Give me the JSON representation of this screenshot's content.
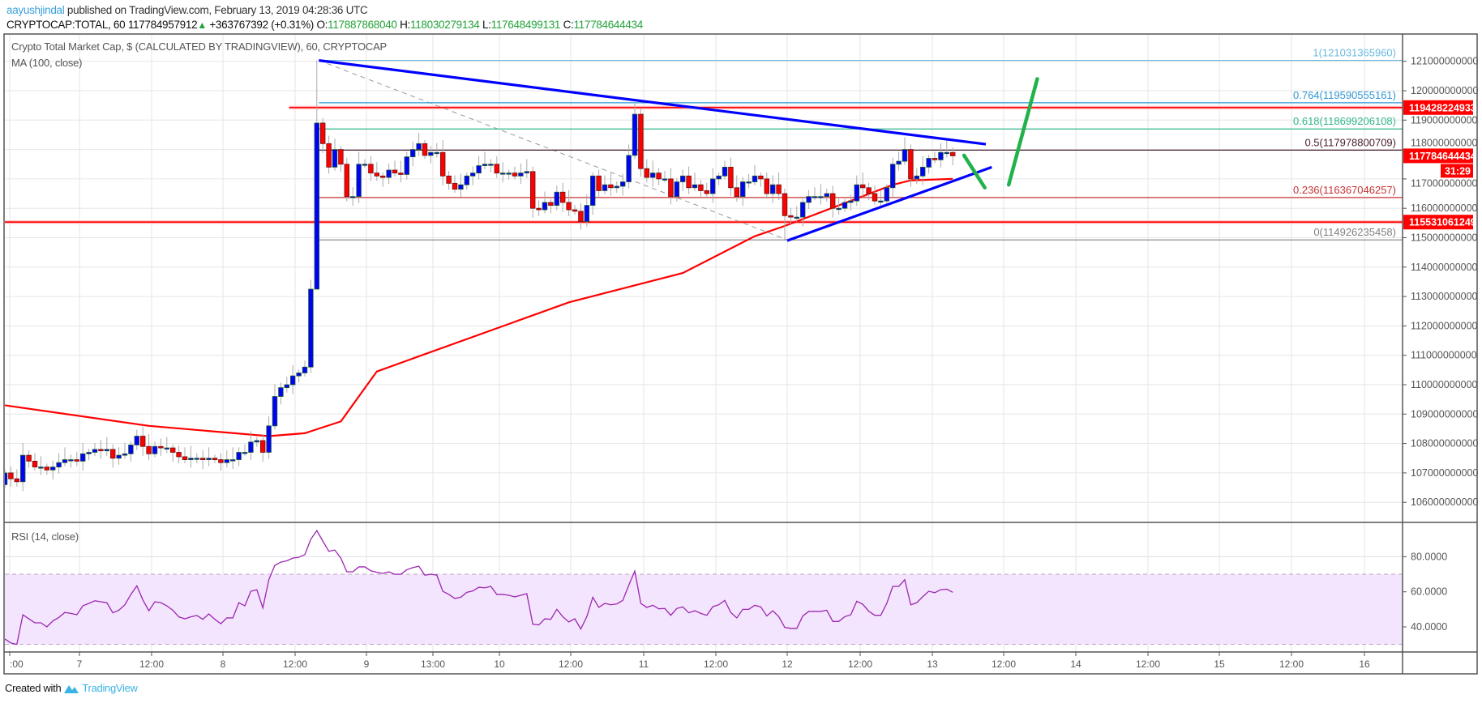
{
  "header": {
    "author": "aayushjindal",
    "published": "published on TradingView.com, February 13, 2019 04:28:36 UTC",
    "symbol": "CRYPTOCAP:TOTAL, 60",
    "last": "117784957912",
    "change_icon": "triangle-up-icon",
    "change": "+363767392 (+0.31%)",
    "o_label": "O:",
    "o": "117887868040",
    "h_label": "H:",
    "h": "118030279134",
    "l_label": "L:",
    "l": "117648499131",
    "c_label": "C:",
    "c": "117784644434"
  },
  "legend": {
    "title": "Crypto Total Market Cap, $ (CALCULATED BY TRADINGVIEW), 60, CRYPTOCAP",
    "ma": "MA (100, close)",
    "rsi": "RSI (14, close)"
  },
  "footer": {
    "created": "Created with",
    "brand": "TradingView",
    "logo_icon": "tradingview-logo-icon"
  },
  "colors": {
    "up_body": "#0000ff",
    "up_border": "#1e5a2a",
    "down_body": "#ff0000",
    "down_border": "#6b1010",
    "wick": "#aaaaaa",
    "ma": "#ff0000",
    "rsi": "#9c27b0",
    "rsi_band": "#f3e5fd",
    "trendline": "#0000ff",
    "arrow": "#22b24c",
    "level": "#ff0000",
    "tag": "#ff0000"
  },
  "chart_data": {
    "type": "candlestick",
    "interval": "60",
    "price_axis": {
      "ticks": [
        121000000000.0,
        120000000000.0,
        119000000000.0,
        118000000000.0,
        117000000000.0,
        116000000000.0,
        115000000000.0,
        114000000000.0,
        113000000000.0,
        112000000000.0,
        111000000000.0,
        110000000000.0,
        109000000000.0,
        108000000000.0,
        107000000000.0,
        106000000000.0
      ]
    },
    "time_axis": {
      "ticks": [
        {
          "label": ":00",
          "time": "2019-02-06 12:00"
        },
        {
          "label": "7",
          "time": "2019-02-07 00:00"
        },
        {
          "label": "12:00",
          "time": "2019-02-07 12:00"
        },
        {
          "label": "8",
          "time": "2019-02-08 00:00"
        },
        {
          "label": "12:00",
          "time": "2019-02-08 12:00"
        },
        {
          "label": "9",
          "time": "2019-02-09 00:00"
        },
        {
          "label": "13:00",
          "time": "2019-02-09 13:00"
        },
        {
          "label": "10",
          "time": "2019-02-10 00:00"
        },
        {
          "label": "12:00",
          "time": "2019-02-10 12:00"
        },
        {
          "label": "11",
          "time": "2019-02-11 00:00"
        },
        {
          "label": "12:00",
          "time": "2019-02-11 12:00"
        },
        {
          "label": "12",
          "time": "2019-02-12 00:00"
        },
        {
          "label": "12:00",
          "time": "2019-02-12 12:00"
        },
        {
          "label": "13",
          "time": "2019-02-13 00:00"
        },
        {
          "label": "12:00",
          "time": "2019-02-13 12:00"
        },
        {
          "label": "14",
          "time": "2019-02-14 00:00"
        },
        {
          "label": "12:00",
          "time": "2019-02-14 12:00"
        },
        {
          "label": "15",
          "time": "2019-02-15 00:00"
        },
        {
          "label": "12:00",
          "time": "2019-02-15 12:00"
        },
        {
          "label": "16",
          "time": "2019-02-16 00:00"
        }
      ]
    },
    "first_open": 106600000000.0,
    "closes": [
      107000000000.0,
      106800000000.0,
      106700000000.0,
      107600000000.0,
      107400000000.0,
      107200000000.0,
      107200000000.0,
      107100000000.0,
      107200000000.0,
      107350000000.0,
      107450000000.0,
      107450000000.0,
      107400000000.0,
      107650000000.0,
      107700000000.0,
      107800000000.0,
      107750000000.0,
      107800000000.0,
      107500000000.0,
      107600000000.0,
      107650000000.0,
      107950000000.0,
      108250000000.0,
      107900000000.0,
      107650000000.0,
      107900000000.0,
      107850000000.0,
      107850000000.0,
      107700000000.0,
      107550000000.0,
      107450000000.0,
      107500000000.0,
      107500000000.0,
      107450000000.0,
      107500000000.0,
      107450000000.0,
      107350000000.0,
      107450000000.0,
      107450000000.0,
      107700000000.0,
      107700000000.0,
      108050000000.0,
      108100000000.0,
      107700000000.0,
      108600000000.0,
      109600000000.0,
      109900000000.0,
      110000000000.0,
      110300000000.0,
      110400000000.0,
      110600000000.0,
      113250000000.0,
      118900000000.0,
      118200000000.0,
      117400000000.0,
      118000000000.0,
      117500000000.0,
      116400000000.0,
      116400000000.0,
      117500000000.0,
      117500000000.0,
      117200000000.0,
      117100000000.0,
      117050000000.0,
      117300000000.0,
      117200000000.0,
      117150000000.0,
      117750000000.0,
      118000000000.0,
      118200000000.0,
      117800000000.0,
      117900000000.0,
      117900000000.0,
      117100000000.0,
      116850000000.0,
      116650000000.0,
      116800000000.0,
      117100000000.0,
      117200000000.0,
      117450000000.0,
      117500000000.0,
      117500000000.0,
      117200000000.0,
      117200000000.0,
      117200000000.0,
      117100000000.0,
      117200000000.0,
      117250000000.0,
      116000000000.0,
      115950000000.0,
      116200000000.0,
      116100000000.0,
      116550000000.0,
      116200000000.0,
      115950000000.0,
      115900000000.0,
      115550000000.0,
      116100000000.0,
      117100000000.0,
      116600000000.0,
      116800000000.0,
      116700000000.0,
      116750000000.0,
      116900000000.0,
      117800000000.0,
      119200000000.0,
      117350000000.0,
      117050000000.0,
      117200000000.0,
      117000000000.0,
      117000000000.0,
      116400000000.0,
      116900000000.0,
      117100000000.0,
      116700000000.0,
      116800000000.0,
      116600000000.0,
      116500000000.0,
      117000000000.0,
      117100000000.0,
      117400000000.0,
      116700000000.0,
      116400000000.0,
      116900000000.0,
      116900000000.0,
      117100000000.0,
      117000000000.0,
      116500000000.0,
      116800000000.0,
      116500000000.0,
      115750000000.0,
      115700000000.0,
      115700000000.0,
      116200000000.0,
      116400000000.0,
      116400000000.0,
      116400000000.0,
      116500000000.0,
      116000000000.0,
      116000000000.0,
      116200000000.0,
      116250000000.0,
      116800000000.0,
      116700000000.0,
      116500000000.0,
      116250000000.0,
      116250000000.0,
      116700000000.0,
      117500000000.0,
      117600000000.0,
      118000000000.0,
      117000000000.0,
      117100000000.0,
      117400000000.0,
      117700000000.0,
      117650000000.0,
      117900000000.0,
      117900000000.0,
      117784644434
    ],
    "extremes": [
      {
        "bar": 52,
        "high": 121031365960,
        "low": 114300000000.0
      },
      {
        "bar": 51,
        "low": 110400000000.0
      },
      {
        "bar": 105,
        "high": 119600000000.0
      },
      {
        "bar": 130,
        "low": 114926235458
      }
    ],
    "ma100": [
      [
        0,
        109300000000.0
      ],
      [
        24,
        108600000000.0
      ],
      [
        44,
        108250000000.0
      ],
      [
        50,
        108350000000.0
      ],
      [
        56,
        108750000000.0
      ],
      [
        62,
        110450000000.0
      ],
      [
        94,
        112800000000.0
      ],
      [
        113,
        113800000000.0
      ],
      [
        125,
        115050000000.0
      ],
      [
        130,
        115400000000.0
      ],
      [
        148,
        116800000000.0
      ],
      [
        151,
        116950000000.0
      ],
      [
        158,
        117000000000.0
      ]
    ],
    "rsi": {
      "ylim": [
        25,
        100
      ],
      "ticks": [
        {
          "value": 80,
          "label": "80.0000"
        },
        {
          "value": 60,
          "label": "60.0000"
        },
        {
          "value": 40,
          "label": "40.0000"
        }
      ],
      "band": [
        30,
        70
      ],
      "values": [
        33.1,
        30.8,
        30,
        46.9,
        44.6,
        42.3,
        42.3,
        40,
        43.4,
        45.4,
        48.2,
        47.7,
        46.9,
        52,
        53.4,
        54.9,
        54.3,
        53.8,
        48,
        49.5,
        52.6,
        58.5,
        63.4,
        55.4,
        49.2,
        54.3,
        53.8,
        52,
        49.5,
        45.7,
        44.6,
        45.7,
        46.5,
        44.3,
        47.4,
        44.3,
        41.8,
        45.1,
        45.1,
        53.8,
        52,
        60.3,
        61.2,
        50.8,
        66.9,
        75.1,
        76.9,
        77.7,
        79.2,
        79.7,
        81.2,
        90,
        94.9,
        88.9,
        83.1,
        83.8,
        79.2,
        71.4,
        71.4,
        74.2,
        74.2,
        72,
        71.1,
        70.5,
        71.4,
        70,
        70,
        72.6,
        73.8,
        74.6,
        69.5,
        70,
        69.5,
        60.3,
        58.5,
        56.2,
        56.9,
        59.7,
        60.5,
        62.6,
        62.3,
        63.1,
        58.5,
        58.5,
        58,
        57.1,
        58,
        58.9,
        41.5,
        41.1,
        44.6,
        44.3,
        50,
        45.8,
        42.8,
        44.6,
        38.8,
        45.8,
        56.9,
        51.1,
        53.4,
        52.6,
        53.1,
        55.1,
        63.8,
        71.8,
        53.4,
        51.1,
        52.3,
        50.3,
        50.5,
        46.6,
        50.5,
        51.4,
        48,
        49.2,
        47.7,
        46.6,
        51.5,
        52.6,
        55.1,
        48.2,
        45.1,
        50,
        50,
        52.3,
        51.4,
        46.2,
        49.2,
        45.8,
        39.7,
        39.1,
        39.1,
        46.2,
        48.8,
        48.8,
        48.8,
        49.5,
        43.1,
        43.1,
        45.8,
        46.9,
        54.6,
        52.9,
        48.9,
        46.6,
        46.6,
        53.4,
        63.1,
        63.1,
        66.9,
        52.6,
        53.8,
        57.2,
        60.3,
        59.5,
        61.2,
        61.5,
        59.7
      ]
    },
    "fibonacci": {
      "from": {
        "time": "2019-02-08 16:00",
        "price": 121031365960
      },
      "to": {
        "time": "2019-02-12 00:00",
        "price": 114926235458
      },
      "levels": [
        {
          "label": "1(121031365960)",
          "value": 121031365960,
          "color": "#6cb8e0"
        },
        {
          "label": "0.764(119590555161)",
          "value": 119590555161,
          "color": "#2f97d2"
        },
        {
          "label": "0.618(118699206108)",
          "value": 118699206108,
          "color": "#33b889"
        },
        {
          "label": "0.5(117978800709)",
          "value": 117978800709,
          "color": "#4a2032"
        },
        {
          "label": "0.236(116367046257)",
          "value": 116367046257,
          "color": "#c83232"
        },
        {
          "label": "0(114926235458)",
          "value": 114926235458,
          "color": "#808080"
        }
      ]
    },
    "horizontal_levels": [
      {
        "value": 119428224933,
        "from": "2019-02-08 11:00"
      },
      {
        "value": 115531061249,
        "from": null
      }
    ],
    "price_tags": [
      {
        "label": "119428224933",
        "value": 119428224933
      },
      {
        "label": "117784644434",
        "value": 117784644434,
        "countdown": "31:29"
      },
      {
        "label": "115531061249",
        "value": 115531061249
      }
    ],
    "trendlines": [
      {
        "kind": "resistance",
        "from": {
          "time": "2019-02-08 16:00",
          "price": 121030000000.0
        },
        "to": {
          "time": "2019-02-13 09:00",
          "price": 118180000000.0
        }
      },
      {
        "kind": "support",
        "from": {
          "time": "2019-02-12 00:00",
          "price": 114900000000.0
        },
        "to": {
          "time": "2019-02-13 10:00",
          "price": 117400000000.0
        }
      }
    ],
    "arrows": [
      {
        "from": {
          "time": "2019-02-13 05:20",
          "price": 117800000000.0
        },
        "to": {
          "time": "2019-02-13 08:50",
          "price": 116700000000.0
        }
      },
      {
        "from": {
          "time": "2019-02-13 12:50",
          "price": 116800000000.0
        },
        "to": {
          "time": "2019-02-13 17:35",
          "price": 120400000000.0
        }
      }
    ]
  }
}
